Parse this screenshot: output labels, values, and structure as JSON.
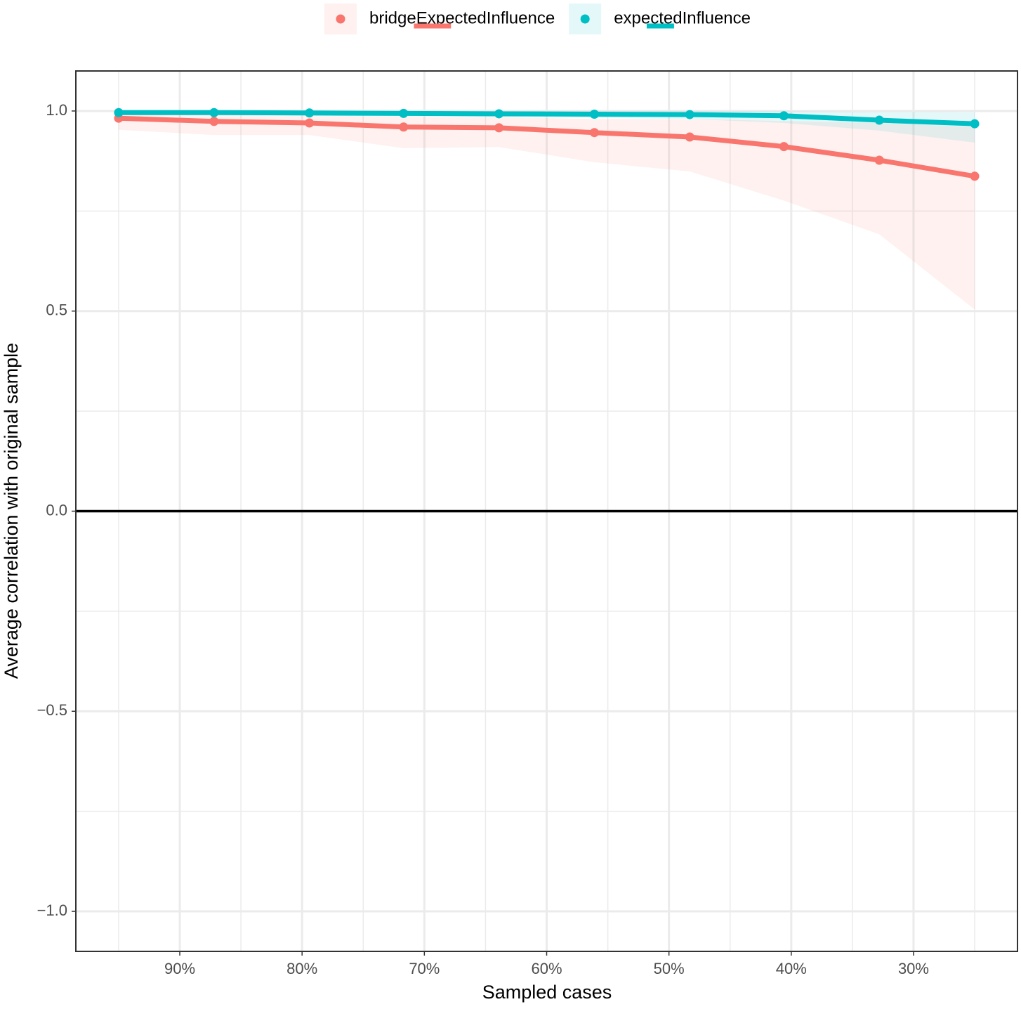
{
  "chart_data": {
    "type": "line",
    "x_label": "Sampled cases",
    "y_label": "Average correlation with original sample",
    "x": [
      95,
      87.2,
      79.4,
      71.7,
      63.9,
      56.1,
      48.3,
      40.6,
      32.8,
      25
    ],
    "series": [
      {
        "name": "bridgeExpectedInfluence",
        "color": "#F8766D",
        "values": [
          0.982,
          0.974,
          0.97,
          0.96,
          0.958,
          0.946,
          0.935,
          0.911,
          0.877,
          0.837
        ],
        "lower": [
          0.953,
          0.94,
          0.94,
          0.907,
          0.91,
          0.872,
          0.849,
          0.776,
          0.692,
          0.504
        ],
        "upper": [
          0.995,
          0.99,
          0.99,
          0.985,
          0.985,
          0.98,
          0.98,
          0.975,
          0.97,
          0.96
        ]
      },
      {
        "name": "expectedInfluence",
        "color": "#00BFC4",
        "values": [
          0.996,
          0.996,
          0.995,
          0.994,
          0.993,
          0.992,
          0.991,
          0.988,
          0.977,
          0.968
        ],
        "lower": [
          0.99,
          0.989,
          0.988,
          0.987,
          0.985,
          0.983,
          0.98,
          0.97,
          0.951,
          0.921
        ],
        "upper": [
          1.0,
          1.0,
          1.0,
          1.0,
          1.0,
          1.0,
          1.0,
          0.999,
          0.998,
          0.997
        ]
      }
    ],
    "xlim": [
      98.5,
      21.5
    ],
    "xticks": [
      {
        "value": 90,
        "label": "90%"
      },
      {
        "value": 80,
        "label": "80%"
      },
      {
        "value": 70,
        "label": "70%"
      },
      {
        "value": 60,
        "label": "60%"
      },
      {
        "value": 50,
        "label": "50%"
      },
      {
        "value": 40,
        "label": "40%"
      },
      {
        "value": 30,
        "label": "30%"
      }
    ],
    "ylim": [
      -1.1,
      1.1
    ],
    "yticks": [
      {
        "value": -1,
        "label": "−1.0"
      },
      {
        "value": -0.5,
        "label": "−0.5"
      },
      {
        "value": 0,
        "label": "0.0"
      },
      {
        "value": 0.5,
        "label": "0.5"
      },
      {
        "value": 1,
        "label": "1.0"
      }
    ],
    "hline": 0,
    "grid": true,
    "legend": "top"
  }
}
